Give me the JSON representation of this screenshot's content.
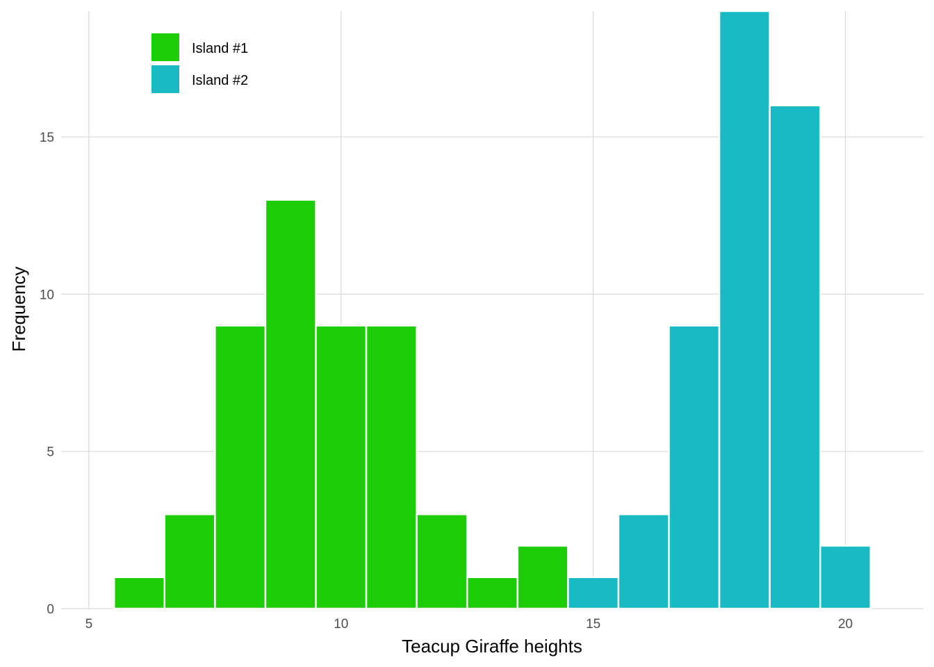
{
  "chart_data": {
    "type": "bar",
    "title": "",
    "xlabel": "Teacup Giraffe heights",
    "ylabel": "Frequency",
    "xlim": [
      4.45,
      21.55
    ],
    "ylim": [
      0,
      19
    ],
    "x_ticks": [
      5,
      10,
      15,
      20
    ],
    "y_ticks": [
      0,
      5,
      10,
      15
    ],
    "x_tick_labels": [
      "5",
      "10",
      "15",
      "20"
    ],
    "y_tick_labels": [
      "0",
      "5",
      "10",
      "15"
    ],
    "bin_width": 1,
    "grid": true,
    "legend_position": "top-left",
    "series": [
      {
        "name": "Island #1",
        "color": "#1bcc07",
        "x": [
          6,
          7,
          8,
          9,
          10,
          11,
          12,
          13,
          14
        ],
        "values": [
          1,
          3,
          9,
          13,
          9,
          9,
          3,
          1,
          2
        ]
      },
      {
        "name": "Island #2",
        "color": "#19bac4",
        "x": [
          15,
          16,
          17,
          18,
          19,
          20
        ],
        "values": [
          1,
          3,
          9,
          19,
          16,
          2
        ]
      }
    ]
  }
}
